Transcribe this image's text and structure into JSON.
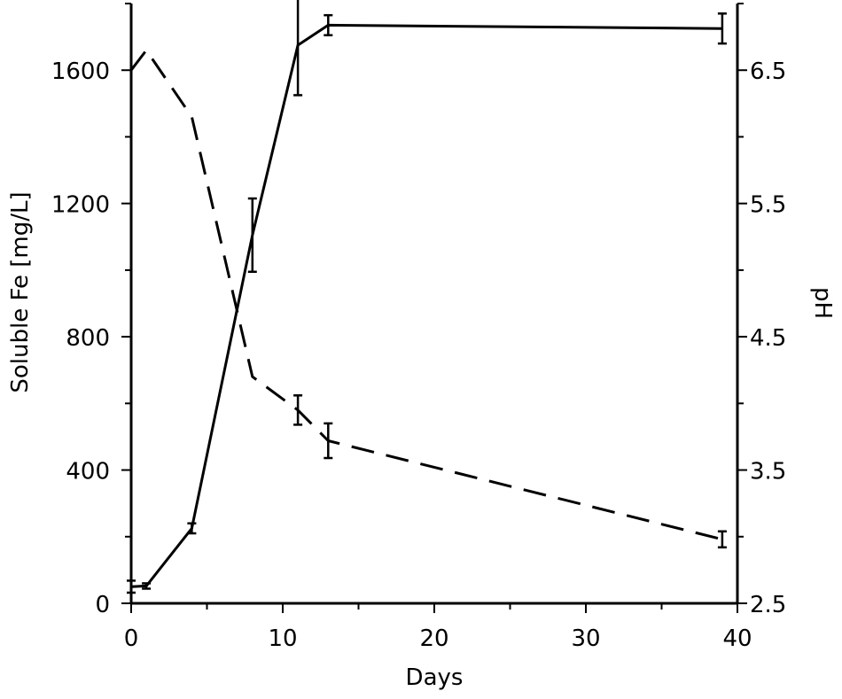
{
  "chart_data": {
    "type": "line",
    "title": "",
    "xlabel": "Days",
    "ylabel": "Soluble Fe [mg/L]",
    "y2label": "pH",
    "xlim": [
      0,
      40
    ],
    "ylim": [
      0,
      1800
    ],
    "y2lim": [
      2.5,
      7.0
    ],
    "x_ticks": [
      0,
      10,
      20,
      30,
      40
    ],
    "x_tick_labels": [
      "0",
      "10",
      "20",
      "30",
      "40"
    ],
    "y_ticks": [
      0,
      400,
      800,
      1200,
      1600
    ],
    "y_tick_labels": [
      "0",
      "400",
      "800",
      "1200",
      "1600"
    ],
    "y2_ticks": [
      2.5,
      3.5,
      4.5,
      5.5,
      6.5
    ],
    "y2_tick_labels": [
      "2.5",
      "3.5",
      "4.5",
      "5.5",
      "6.5"
    ],
    "grid": false,
    "legend": "none",
    "series": [
      {
        "axis": "left",
        "style": "solid",
        "color": "#000000",
        "x": [
          0,
          1,
          4,
          8,
          11,
          13,
          39
        ],
        "y": [
          50,
          52,
          225,
          1105,
          1675,
          1735,
          1725
        ],
        "err": [
          18,
          8,
          15,
          110,
          150,
          30,
          45
        ]
      },
      {
        "axis": "right",
        "style": "dashed",
        "color": "#000000",
        "x": [
          0,
          1,
          4,
          8,
          11,
          13,
          39
        ],
        "y": [
          6.5,
          6.65,
          6.15,
          4.2,
          3.95,
          3.72,
          2.98
        ],
        "err": [
          0,
          0,
          0,
          0,
          0.11,
          0.13,
          0.06
        ]
      }
    ]
  }
}
